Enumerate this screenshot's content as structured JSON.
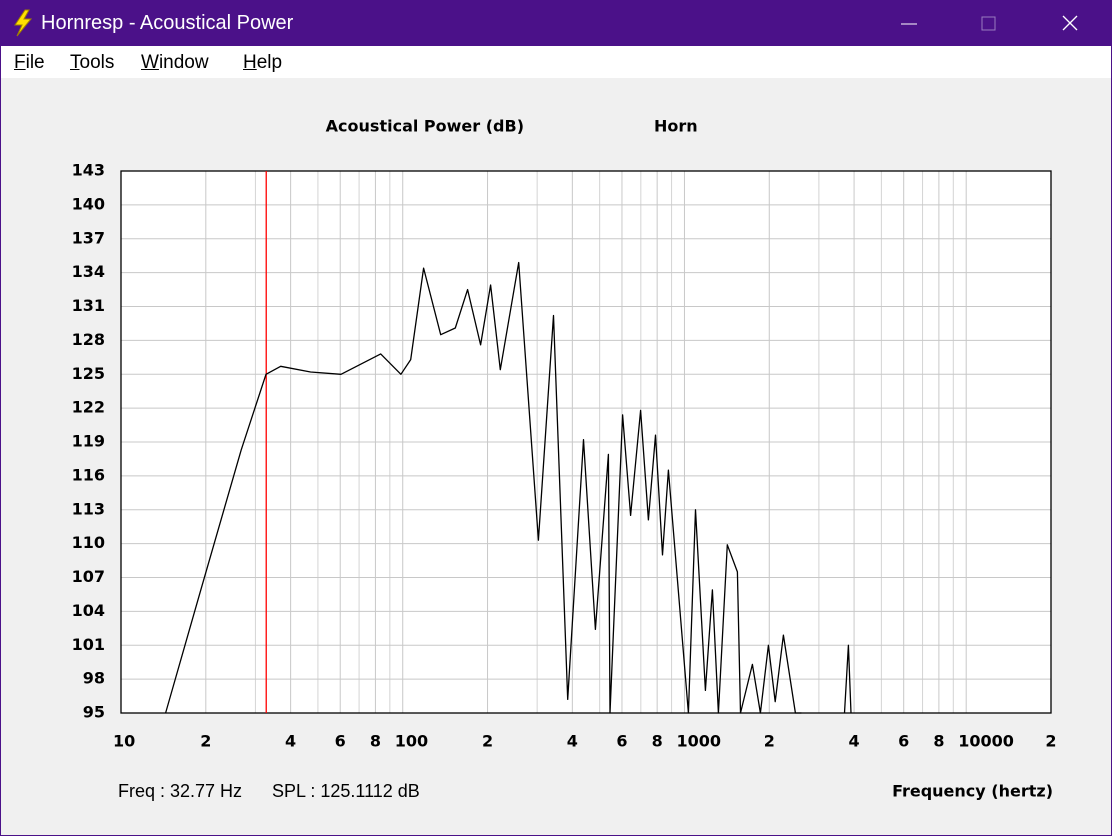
{
  "window": {
    "title": "Hornresp - Acoustical Power",
    "menu": [
      "File",
      "Tools",
      "Window",
      "Help"
    ]
  },
  "chart_data": {
    "type": "line",
    "title": "Acoustical Power (dB)",
    "subtitle": "Horn",
    "x_label": "Frequency (hertz)",
    "xscale": "log",
    "xlim": [
      10,
      20000
    ],
    "ylim": [
      95,
      143
    ],
    "xticks": [
      10,
      {
        "value": 20,
        "label": "2"
      },
      {
        "value": 40,
        "label": "4"
      },
      {
        "value": 60,
        "label": "6"
      },
      {
        "value": 80,
        "label": "8"
      },
      100,
      {
        "value": 200,
        "label": "2"
      },
      {
        "value": 400,
        "label": "4"
      },
      {
        "value": 600,
        "label": "6"
      },
      {
        "value": 800,
        "label": "8"
      },
      1000,
      {
        "value": 2000,
        "label": "2"
      },
      {
        "value": 4000,
        "label": "4"
      },
      {
        "value": 6000,
        "label": "6"
      },
      {
        "value": 8000,
        "label": "8"
      },
      10000,
      {
        "value": 20000,
        "label": "2"
      }
    ],
    "xminor_ticks": [
      30,
      50,
      70,
      90,
      300,
      500,
      700,
      900,
      3000,
      5000,
      7000,
      9000
    ],
    "yticks": [
      95,
      98,
      101,
      104,
      107,
      110,
      113,
      116,
      119,
      122,
      125,
      128,
      131,
      134,
      137,
      140,
      143
    ],
    "grid": true,
    "series": [
      {
        "color": "#000000",
        "x": [
          14.4,
          19.2,
          26.7,
          32.7,
          36.9,
          47.1,
          60.4,
          83.5,
          98.5,
          106.7,
          118.6,
          136.4,
          153.7,
          169.9,
          189,
          205,
          222,
          258,
          303,
          343,
          385,
          438,
          483,
          537,
          544,
          603,
          644,
          699,
          745,
          789,
          836,
          877,
          1033,
          1094,
          1187,
          1257,
          1320,
          1419,
          1541,
          1581,
          1742,
          1860,
          1986,
          2100,
          2245,
          2476,
          2600,
          3000,
          3700,
          3819,
          3900
        ],
        "values": [
          95,
          105.9,
          118.3,
          125,
          125.7,
          125.2,
          125,
          126.8,
          125,
          126.3,
          134.4,
          128.5,
          129.1,
          132.5,
          127.6,
          132.9,
          125.4,
          134.9,
          110.3,
          130.2,
          96.2,
          119.2,
          102.4,
          117.9,
          95,
          121.4,
          112.5,
          121.8,
          112.1,
          119.6,
          109,
          116.5,
          95,
          113,
          97,
          105.9,
          95,
          109.9,
          107.5,
          95,
          99.3,
          95,
          101,
          96,
          101.9,
          95,
          95,
          null,
          95,
          101,
          95
        ]
      }
    ],
    "cursor": {
      "x": 32.77,
      "color": "#ff0000"
    },
    "readout": {
      "freq": "Freq : 32.77 Hz",
      "spl": "SPL : 125.1112 dB",
      "color": "#ff0000"
    }
  }
}
